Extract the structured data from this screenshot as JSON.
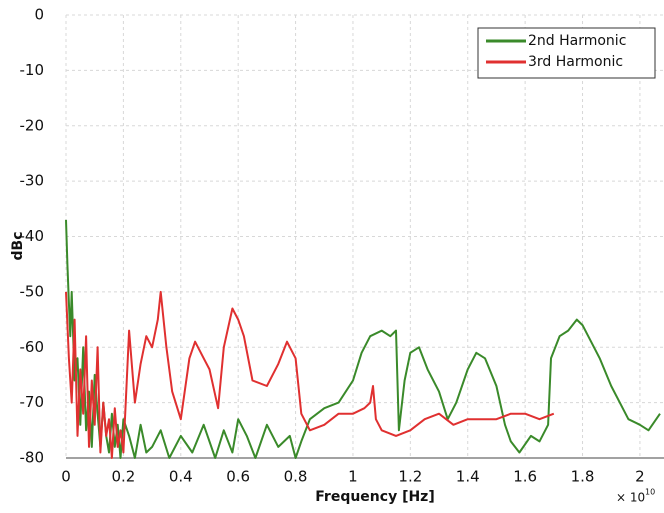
{
  "chart_data": {
    "type": "line",
    "x_label": "Frequency [Hz]",
    "y_label": "dBc",
    "x_scale_label": "× 10",
    "x_scale_exponent": "10",
    "xlim": [
      0,
      2.07
    ],
    "ylim": [
      -80,
      0
    ],
    "xticks": [
      0,
      0.2,
      0.4,
      0.6,
      0.8,
      1,
      1.2,
      1.4,
      1.6,
      1.8,
      2
    ],
    "yticks": [
      0,
      -10,
      -20,
      -30,
      -40,
      -50,
      -60,
      -70,
      -80
    ],
    "grid": true,
    "legend": "upper right",
    "series": [
      {
        "name": "2nd Harmonic",
        "color": "#3a8a2a",
        "x": [
          0,
          0.005,
          0.01,
          0.015,
          0.02,
          0.03,
          0.04,
          0.05,
          0.06,
          0.07,
          0.08,
          0.09,
          0.1,
          0.11,
          0.12,
          0.13,
          0.14,
          0.15,
          0.16,
          0.17,
          0.18,
          0.19,
          0.2,
          0.22,
          0.24,
          0.26,
          0.28,
          0.3,
          0.33,
          0.36,
          0.4,
          0.44,
          0.48,
          0.52,
          0.55,
          0.58,
          0.6,
          0.63,
          0.66,
          0.7,
          0.74,
          0.78,
          0.8,
          0.82,
          0.85,
          0.9,
          0.95,
          1.0,
          1.03,
          1.06,
          1.1,
          1.13,
          1.15,
          1.16,
          1.18,
          1.2,
          1.23,
          1.26,
          1.3,
          1.33,
          1.36,
          1.4,
          1.43,
          1.46,
          1.5,
          1.53,
          1.55,
          1.58,
          1.62,
          1.65,
          1.68,
          1.69,
          1.72,
          1.75,
          1.78,
          1.8,
          1.83,
          1.86,
          1.9,
          1.93,
          1.96,
          2.0,
          2.03,
          2.07
        ],
        "values": [
          -37,
          -45,
          -52,
          -58,
          -50,
          -66,
          -62,
          -74,
          -60,
          -75,
          -68,
          -78,
          -65,
          -72,
          -78,
          -70,
          -76,
          -79,
          -72,
          -78,
          -74,
          -80,
          -73,
          -76,
          -80,
          -74,
          -79,
          -78,
          -75,
          -80,
          -76,
          -79,
          -74,
          -80,
          -75,
          -79,
          -73,
          -76,
          -80,
          -74,
          -78,
          -76,
          -80,
          -77,
          -73,
          -71,
          -70,
          -66,
          -61,
          -58,
          -57,
          -58,
          -57,
          -75,
          -66,
          -61,
          -60,
          -64,
          -68,
          -73,
          -70,
          -64,
          -61,
          -62,
          -67,
          -74,
          -77,
          -79,
          -76,
          -77,
          -74,
          -62,
          -58,
          -57,
          -55,
          -56,
          -59,
          -62,
          -67,
          -70,
          -73,
          -74,
          -75,
          -72
        ]
      },
      {
        "name": "3rd Harmonic",
        "color": "#e03030",
        "x": [
          0,
          0.01,
          0.02,
          0.03,
          0.04,
          0.05,
          0.06,
          0.07,
          0.08,
          0.09,
          0.1,
          0.11,
          0.12,
          0.13,
          0.14,
          0.15,
          0.16,
          0.17,
          0.18,
          0.19,
          0.2,
          0.22,
          0.24,
          0.26,
          0.28,
          0.3,
          0.32,
          0.33,
          0.35,
          0.37,
          0.4,
          0.43,
          0.45,
          0.48,
          0.5,
          0.53,
          0.55,
          0.58,
          0.6,
          0.62,
          0.65,
          0.7,
          0.74,
          0.77,
          0.8,
          0.82,
          0.85,
          0.9,
          0.95,
          1.0,
          1.04,
          1.06,
          1.07,
          1.08,
          1.1,
          1.15,
          1.2,
          1.25,
          1.3,
          1.35,
          1.4,
          1.45,
          1.5,
          1.55,
          1.6,
          1.65,
          1.7
        ],
        "values": [
          -50,
          -62,
          -70,
          -55,
          -76,
          -64,
          -72,
          -58,
          -78,
          -66,
          -74,
          -60,
          -79,
          -70,
          -76,
          -73,
          -80,
          -71,
          -78,
          -75,
          -79,
          -57,
          -70,
          -63,
          -58,
          -60,
          -55,
          -50,
          -60,
          -68,
          -73,
          -62,
          -59,
          -62,
          -64,
          -71,
          -60,
          -53,
          -55,
          -58,
          -66,
          -67,
          -63,
          -59,
          -62,
          -72,
          -75,
          -74,
          -72,
          -72,
          -71,
          -70,
          -67,
          -73,
          -75,
          -76,
          -75,
          -73,
          -72,
          -74,
          -73,
          -73,
          -73,
          -72,
          -72,
          -73,
          -72
        ]
      }
    ]
  }
}
